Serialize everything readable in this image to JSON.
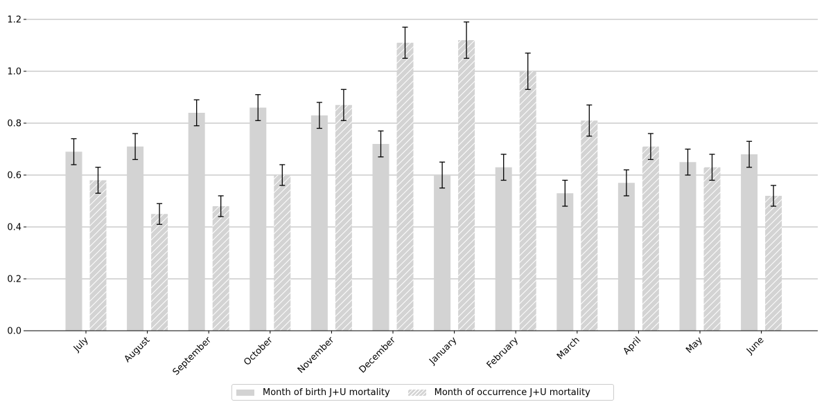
{
  "chart_data": {
    "type": "bar",
    "title": "",
    "xlabel": "",
    "ylabel": "",
    "ylim": [
      0,
      1.2
    ],
    "yticks": [
      "0.0",
      "0.2",
      "0.4",
      "0.6",
      "0.8",
      "1.0",
      "1.2"
    ],
    "grid": "horizontal",
    "legend_position": "bottom-center",
    "categories": [
      "July",
      "August",
      "September",
      "October",
      "November",
      "December",
      "January",
      "February",
      "March",
      "April",
      "May",
      "June"
    ],
    "series": [
      {
        "name": "Month of birth J+U mortality",
        "style": "solid",
        "color": "#d3d3d3",
        "values": [
          0.69,
          0.71,
          0.84,
          0.86,
          0.83,
          0.72,
          0.6,
          0.63,
          0.53,
          0.57,
          0.65,
          0.68
        ],
        "err_low": [
          0.64,
          0.66,
          0.79,
          0.81,
          0.78,
          0.67,
          0.55,
          0.58,
          0.48,
          0.52,
          0.6,
          0.63
        ],
        "err_high": [
          0.74,
          0.76,
          0.89,
          0.91,
          0.88,
          0.77,
          0.65,
          0.68,
          0.58,
          0.62,
          0.7,
          0.73
        ]
      },
      {
        "name": "Month of occurrence J+U mortality",
        "style": "hatched",
        "color": "#d3d3d3",
        "values": [
          0.58,
          0.45,
          0.48,
          0.6,
          0.87,
          1.11,
          1.12,
          1.0,
          0.81,
          0.71,
          0.63,
          0.52
        ],
        "err_low": [
          0.53,
          0.41,
          0.44,
          0.56,
          0.81,
          1.05,
          1.05,
          0.93,
          0.75,
          0.66,
          0.58,
          0.48
        ],
        "err_high": [
          0.63,
          0.49,
          0.52,
          0.64,
          0.93,
          1.17,
          1.19,
          1.07,
          0.87,
          0.76,
          0.68,
          0.56
        ]
      }
    ]
  }
}
